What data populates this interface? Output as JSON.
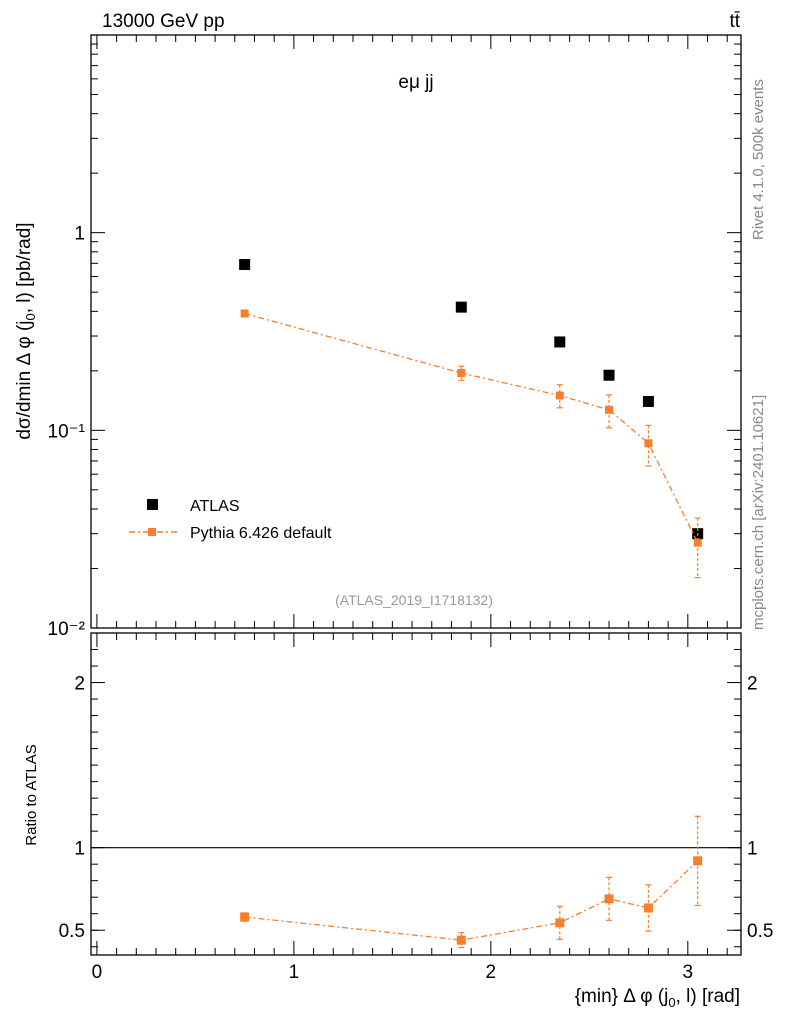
{
  "header": {
    "energy_label": "13000 GeV pp",
    "process_label": "tt̄"
  },
  "side_labels": {
    "rivet": "Rivet 4.1.0,  500k events",
    "mcplots": "mcplots.cern.ch [arXiv:2401.10621]"
  },
  "reference_id": "(ATLAS_2019_I1718132)",
  "colors": {
    "data": "#000000",
    "mc": "#f57f2d",
    "ratio_line": "#000000"
  },
  "chart_data": [
    {
      "type": "scatter",
      "panel": "main",
      "annotation": "eμ jj",
      "ylabel": "dσ/dmin Δ φ (j0, l) [pb/rad]",
      "yscale": "log",
      "ylim": [
        0.01,
        10
      ],
      "xlim": [
        -0.03,
        3.27
      ],
      "y_tick_labels": [
        "10⁻²",
        "10⁻¹",
        "1"
      ],
      "legend_position": "lower-left",
      "series": [
        {
          "name": "ATLAS",
          "style": "markers",
          "x": [
            0.75,
            1.85,
            2.35,
            2.6,
            2.8,
            3.05
          ],
          "y": [
            0.69,
            0.42,
            0.28,
            0.19,
            0.14,
            0.03
          ]
        },
        {
          "name": "Pythia 6.426 default",
          "style": "dash-dot-line-markers",
          "x": [
            0.75,
            1.85,
            2.35,
            2.6,
            2.8,
            3.05
          ],
          "y": [
            0.39,
            0.195,
            0.15,
            0.127,
            0.086,
            0.027
          ],
          "yerr_low": [
            0.008,
            0.016,
            0.02,
            0.024,
            0.02,
            0.009
          ],
          "yerr_high": [
            0.008,
            0.016,
            0.02,
            0.024,
            0.02,
            0.009
          ]
        }
      ]
    },
    {
      "type": "line",
      "panel": "ratio",
      "ylabel": "Ratio to ATLAS",
      "xlabel": "{min} Δ φ (j0, l) [rad]",
      "ylim": [
        0.35,
        2.3
      ],
      "xlim": [
        -0.03,
        3.27
      ],
      "x_ticks": [
        0,
        1,
        2,
        3
      ],
      "y_ticks": [
        0.5,
        1,
        2
      ],
      "reference_line": 1,
      "series": [
        {
          "name": "Pythia 6.426 default",
          "x": [
            0.75,
            1.85,
            2.35,
            2.6,
            2.8,
            3.05
          ],
          "y": [
            0.58,
            0.44,
            0.545,
            0.69,
            0.635,
            0.92
          ],
          "yerr_low": [
            0.025,
            0.045,
            0.1,
            0.13,
            0.14,
            0.27
          ],
          "yerr_high": [
            0.025,
            0.045,
            0.1,
            0.13,
            0.14,
            0.27
          ]
        }
      ]
    }
  ]
}
